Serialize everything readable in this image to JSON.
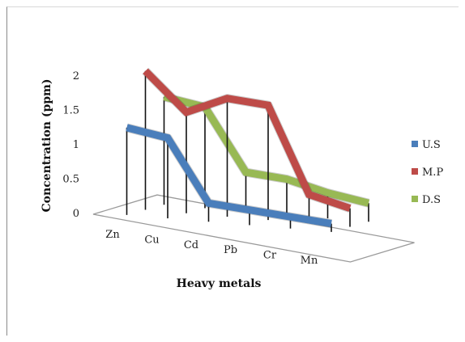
{
  "chart_data": {
    "type": "line",
    "style": "3d-ribbon",
    "categories": [
      "Zn",
      "Cu",
      "Cd",
      "Pb",
      "Cr",
      "Mn"
    ],
    "xlabel": "Heavy metals",
    "ylabel": "Concentration (ppm)",
    "ylim": [
      0,
      2
    ],
    "yticks": [
      "0",
      "0.5",
      "1",
      "1.5",
      "2"
    ],
    "grid": false,
    "legend_position": "right",
    "series": [
      {
        "name": "U.S",
        "color": "#4a7ebb",
        "values": [
          1.2,
          1.1,
          0.2,
          0.15,
          0.1,
          0.05
        ]
      },
      {
        "name": "M.P",
        "color": "#be4b48",
        "values": [
          1.95,
          1.4,
          1.65,
          1.6,
          0.35,
          0.2
        ]
      },
      {
        "name": "D.S",
        "color": "#98b954",
        "values": [
          1.5,
          1.4,
          0.5,
          0.45,
          0.3,
          0.2
        ]
      }
    ]
  }
}
